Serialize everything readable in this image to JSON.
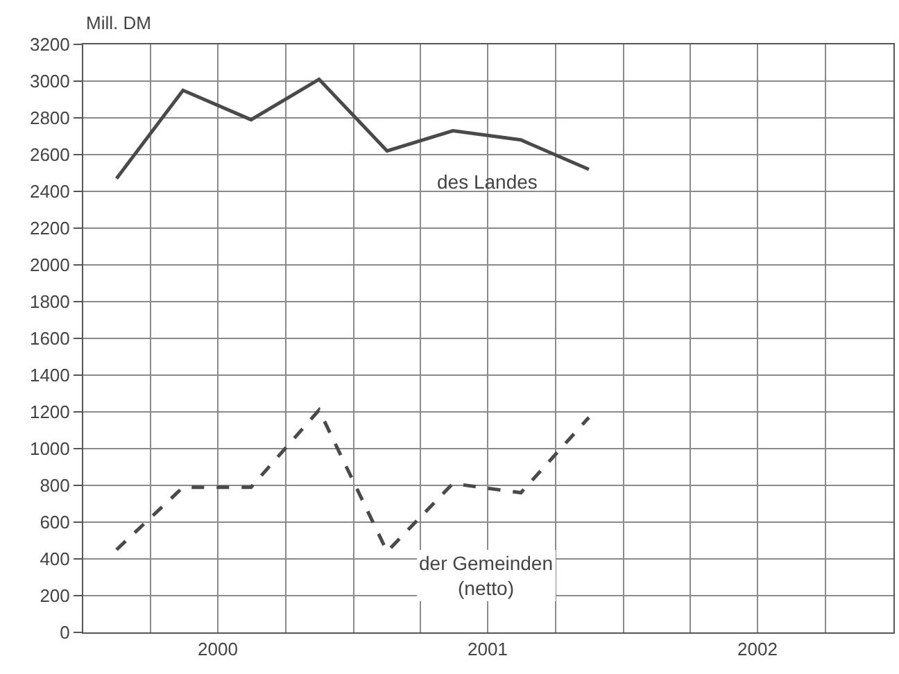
{
  "chart_data": {
    "type": "line",
    "ylabel": "Mill. DM",
    "x": [
      "2000-02-15",
      "2000-05-15",
      "2000-08-15",
      "2000-11-15",
      "2001-02-15",
      "2001-05-15",
      "2001-08-15",
      "2001-11-15"
    ],
    "series": [
      {
        "name": "des Landes",
        "color": "#4a4a4a",
        "line_style": "solid",
        "values": [
          2470,
          2950,
          2790,
          3010,
          2620,
          2730,
          2680,
          2520
        ]
      },
      {
        "name": "der Gemeinden (netto)",
        "color": "#4a4a4a",
        "line_style": "dashed",
        "values": [
          450,
          790,
          790,
          1210,
          440,
          810,
          760,
          1170
        ]
      }
    ],
    "xlim": [
      "2000-01-01",
      "2003-01-01"
    ],
    "xticks": [
      {
        "value": "2000-04-01",
        "label": null
      },
      {
        "value": "2000-07-01",
        "label": "2000"
      },
      {
        "value": "2000-10-01",
        "label": null
      },
      {
        "value": "2001-01-01",
        "label": null
      },
      {
        "value": "2001-04-01",
        "label": null
      },
      {
        "value": "2001-07-01",
        "label": "2001"
      },
      {
        "value": "2001-10-01",
        "label": null
      },
      {
        "value": "2002-01-01",
        "label": null
      },
      {
        "value": "2002-04-01",
        "label": null
      },
      {
        "value": "2002-07-01",
        "label": "2002"
      },
      {
        "value": "2002-10-01",
        "label": null
      }
    ],
    "ylim": [
      0,
      3200
    ],
    "yticks": [
      0,
      200,
      400,
      600,
      800,
      1000,
      1200,
      1400,
      1600,
      1800,
      2000,
      2200,
      2400,
      2600,
      2800,
      3000,
      3200
    ],
    "grid": true,
    "legend": false,
    "marker": "none"
  }
}
